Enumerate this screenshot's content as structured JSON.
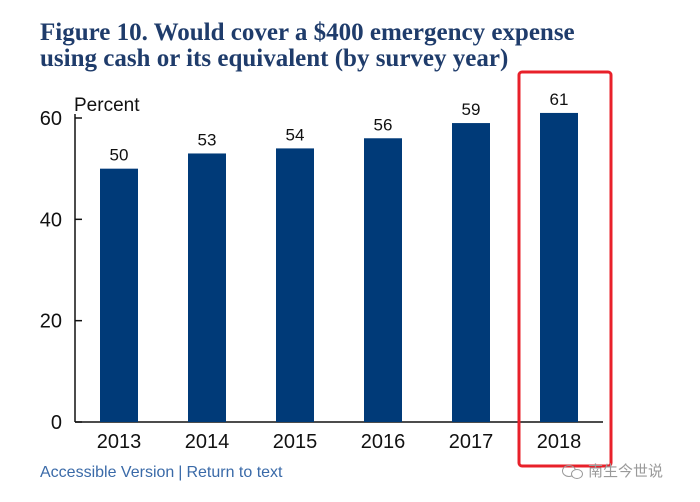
{
  "figure": {
    "title_line1": "Figure 10. Would cover a $400 emergency expense",
    "title_line2": "using cash or its equivalent (by survey year)"
  },
  "chart_data": {
    "type": "bar",
    "ylabel": "Percent",
    "categories": [
      "2013",
      "2014",
      "2015",
      "2016",
      "2017",
      "2018"
    ],
    "values": [
      50,
      53,
      54,
      56,
      59,
      61
    ],
    "ylim": [
      0,
      60
    ],
    "yticks": [
      0,
      20,
      40,
      60
    ],
    "grid": false,
    "bar_color": "#003a78",
    "highlight": {
      "category": "2018",
      "color": "#e8202a"
    }
  },
  "footer": {
    "accessible_label": "Accessible Version",
    "separator": "|",
    "return_label": "Return to text"
  },
  "watermark": {
    "icon": "wechat-icon",
    "text": "南生今世说"
  }
}
